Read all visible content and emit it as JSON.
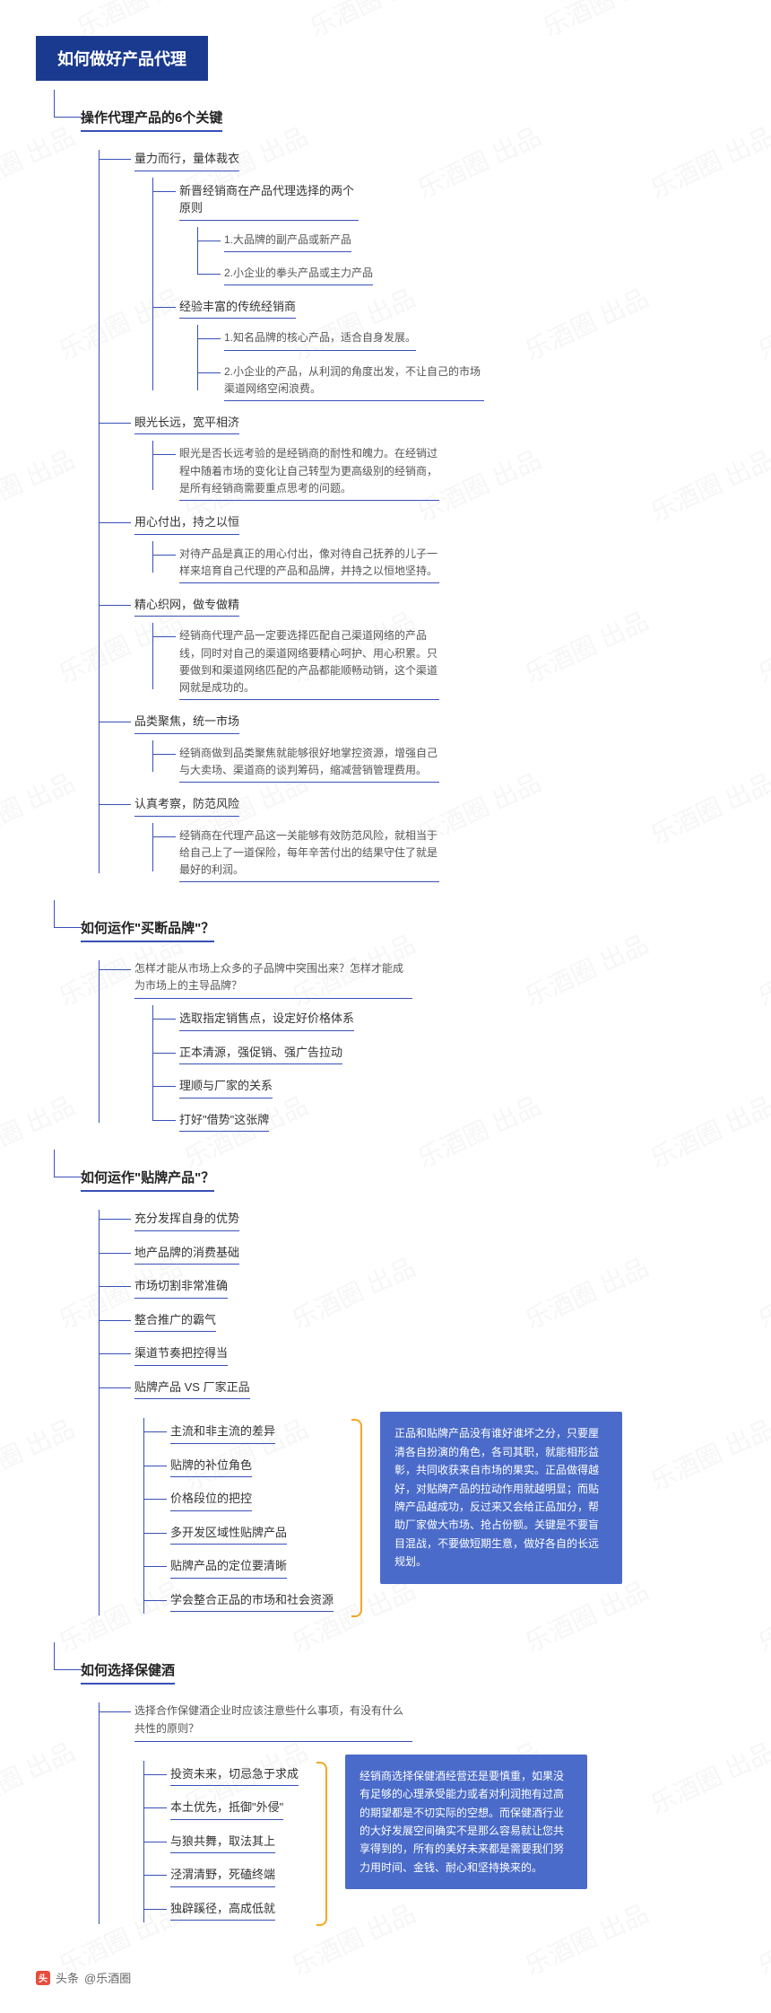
{
  "colors": {
    "primary_dark": "#1a3a8f",
    "line": "#3850b8",
    "callout_bg": "#4a6bc9",
    "bracket": "#f5a623",
    "text": "#333333",
    "text_light": "#555555",
    "watermark": "#888888"
  },
  "watermark_text": "乐酒圈 出品",
  "root_title": "如何做好产品代理",
  "sections": [
    {
      "title": "操作代理产品的6个关键",
      "items": [
        {
          "label": "量力而行，量体裁衣",
          "children": [
            {
              "label": "新晋经销商在产品代理选择的两个原则",
              "children": [
                {
                  "label": "1.大品牌的副产品或新产品"
                },
                {
                  "label": "2.小企业的拳头产品或主力产品"
                }
              ]
            },
            {
              "label": "经验丰富的传统经销商",
              "children": [
                {
                  "label": "1.知名品牌的核心产品，适合自身发展。"
                },
                {
                  "label": "2.小企业的产品，从利润的角度出发，不让自己的市场渠道网络空闲浪费。"
                }
              ]
            }
          ]
        },
        {
          "label": "眼光长远，宽平相济",
          "desc": "眼光是否长远考验的是经销商的耐性和魄力。在经销过程中随着市场的变化让自己转型为更高级别的经销商，是所有经销商需要重点思考的问题。"
        },
        {
          "label": "用心付出，持之以恒",
          "desc": "对待产品是真正的用心付出，像对待自己抚养的儿子一样来培育自己代理的产品和品牌，并持之以恒地坚持。"
        },
        {
          "label": "精心织网，做专做精",
          "desc": "经销商代理产品一定要选择匹配自己渠道网络的产品线，同时对自己的渠道网络要精心呵护、用心积累。只要做到和渠道网络匹配的产品都能顺畅动销，这个渠道网就是成功的。"
        },
        {
          "label": "品类聚焦，统一市场",
          "desc": "经销商做到品类聚焦就能够很好地掌控资源，增强自己与大卖场、渠道商的谈判筹码，缩减营销管理费用。"
        },
        {
          "label": "认真考察，防范风险",
          "desc": "经销商在代理产品这一关能够有效防范风险，就相当于给自己上了一道保险，每年辛苦付出的结果守住了就是最好的利润。"
        }
      ]
    },
    {
      "title": "如何运作\"买断品牌\"？",
      "intro": "怎样才能从市场上众多的子品牌中突围出来？怎样才能成为市场上的主导品牌？",
      "list": [
        "选取指定销售点，设定好价格体系",
        "正本清源，强促销、强广告拉动",
        "理顺与厂家的关系",
        "打好\"借势\"这张牌"
      ]
    },
    {
      "title": "如何运作\"贴牌产品\"？",
      "list": [
        "充分发挥自身的优势",
        "地产品牌的消费基础",
        "市场切割非常准确",
        "整合推广的霸气",
        "渠道节奏把控得当",
        "贴牌产品 VS 厂家正品"
      ],
      "sublist": [
        "主流和非主流的差异",
        "贴牌的补位角色",
        "价格段位的把控",
        "多开发区域性贴牌产品",
        "贴牌产品的定位要清晰",
        "学会整合正品的市场和社会资源"
      ],
      "callout": "正品和贴牌产品没有谁好谁坏之分，只要厘清各自扮演的角色，各司其职，就能相形益彰，共同收获来自市场的果实。正品做得越好，对贴牌产品的拉动作用就越明显；而贴牌产品越成功，反过来又会给正品加分，帮助厂家做大市场、抢占份额。关键是不要盲目混战，不要做短期生意，做好各自的长远规划。"
    },
    {
      "title": "如何选择保健酒",
      "intro": "选择合作保健酒企业时应该注意些什么事项，有没有什么共性的原则？",
      "list": [
        "投资未来，切忌急于求成",
        "本土优先，抵御\"外侵\"",
        "与狼共舞，取法其上",
        "泾渭清野，死磕终端",
        "独辟蹊径，高成低就"
      ],
      "callout": "经销商选择保健酒经营还是要慎重，如果没有足够的心理承受能力或者对利润抱有过高的期望都是不切实际的空想。而保健酒行业的大好发展空间确实不是那么容易就让您共享得到的，所有的美好未来都是需要我们努力用时间、金钱、耐心和坚持换来的。"
    }
  ],
  "footer": {
    "icon_text": "头",
    "source_prefix": "头条",
    "source": "@乐酒圈"
  }
}
